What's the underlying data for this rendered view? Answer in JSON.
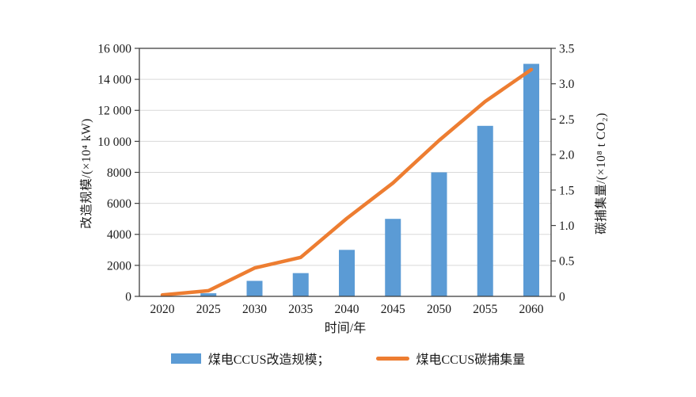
{
  "chart_data": {
    "type": "bar+line combo",
    "categories": [
      "2020",
      "2025",
      "2030",
      "2035",
      "2040",
      "2045",
      "2050",
      "2055",
      "2060"
    ],
    "series": [
      {
        "name": "煤电CCUS改造规模",
        "type": "bar",
        "axis": "left",
        "color": "#5B9BD5",
        "values": [
          0,
          200,
          1000,
          1500,
          3000,
          5000,
          8000,
          11000,
          15000
        ]
      },
      {
        "name": "煤电CCUS碳捕集量",
        "type": "line",
        "axis": "right",
        "color": "#ED7D31",
        "values": [
          0.02,
          0.08,
          0.4,
          0.55,
          1.1,
          1.6,
          2.2,
          2.75,
          3.2
        ]
      }
    ],
    "left_axis": {
      "label": "改造规模/(×10⁴ kW)",
      "min": 0,
      "max": 16000,
      "tick_step": 2000,
      "tick_labels": [
        "0",
        "2000",
        "4000",
        "6000",
        "8000",
        "10 000",
        "12 000",
        "14 000",
        "16 000"
      ]
    },
    "right_axis": {
      "label": "碳捕集量/(×10⁸ t CO₂)",
      "min": 0,
      "max": 3.5,
      "tick_step": 0.5,
      "tick_labels": [
        "0",
        "0.5",
        "1.0",
        "1.5",
        "2.0",
        "2.5",
        "3.0",
        "3.5"
      ]
    },
    "x_axis": {
      "label": "时间/年"
    },
    "grid": true,
    "legend_position": "bottom",
    "legend": [
      {
        "label": "煤电CCUS改造规模；",
        "swatch": "bar",
        "color": "#5B9BD5"
      },
      {
        "label": "煤电CCUS碳捕集量",
        "swatch": "line",
        "color": "#ED7D31"
      }
    ],
    "colors": {
      "bar": "#5B9BD5",
      "line": "#ED7D31",
      "grid": "#D9D9D9",
      "axis": "#404040",
      "background": "#FFFFFF"
    }
  }
}
